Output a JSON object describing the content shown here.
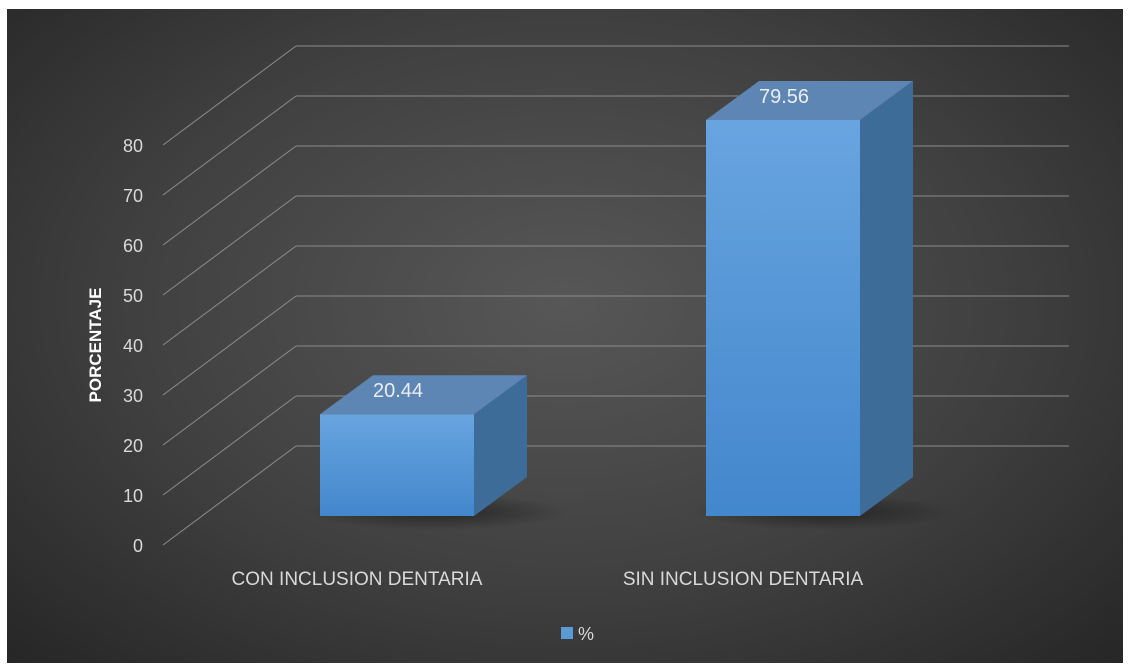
{
  "chart_data": {
    "type": "bar",
    "style": "3d-column",
    "categories": [
      "CON INCLUSION DENTARIA",
      "SIN INCLUSION DENTARIA"
    ],
    "series": [
      {
        "name": "%",
        "values": [
          20.44,
          79.56
        ],
        "color": "#5b9bd5"
      }
    ],
    "data_labels": [
      "20.44",
      "79.56"
    ],
    "ylabel": "PORCENTAJE",
    "xlabel": "",
    "ylim": [
      0,
      80
    ],
    "yticks": [
      0,
      10,
      20,
      30,
      40,
      50,
      60,
      70,
      80
    ],
    "grid": true,
    "legend": {
      "position": "bottom",
      "entries": [
        "%"
      ]
    }
  },
  "colors": {
    "background": "#404040",
    "gridline": "#8c8c8c",
    "text": "#d9d9d9",
    "bar_front": "#5b9bd5",
    "bar_top": "#5d86b5",
    "bar_side": "#3e6c98"
  }
}
